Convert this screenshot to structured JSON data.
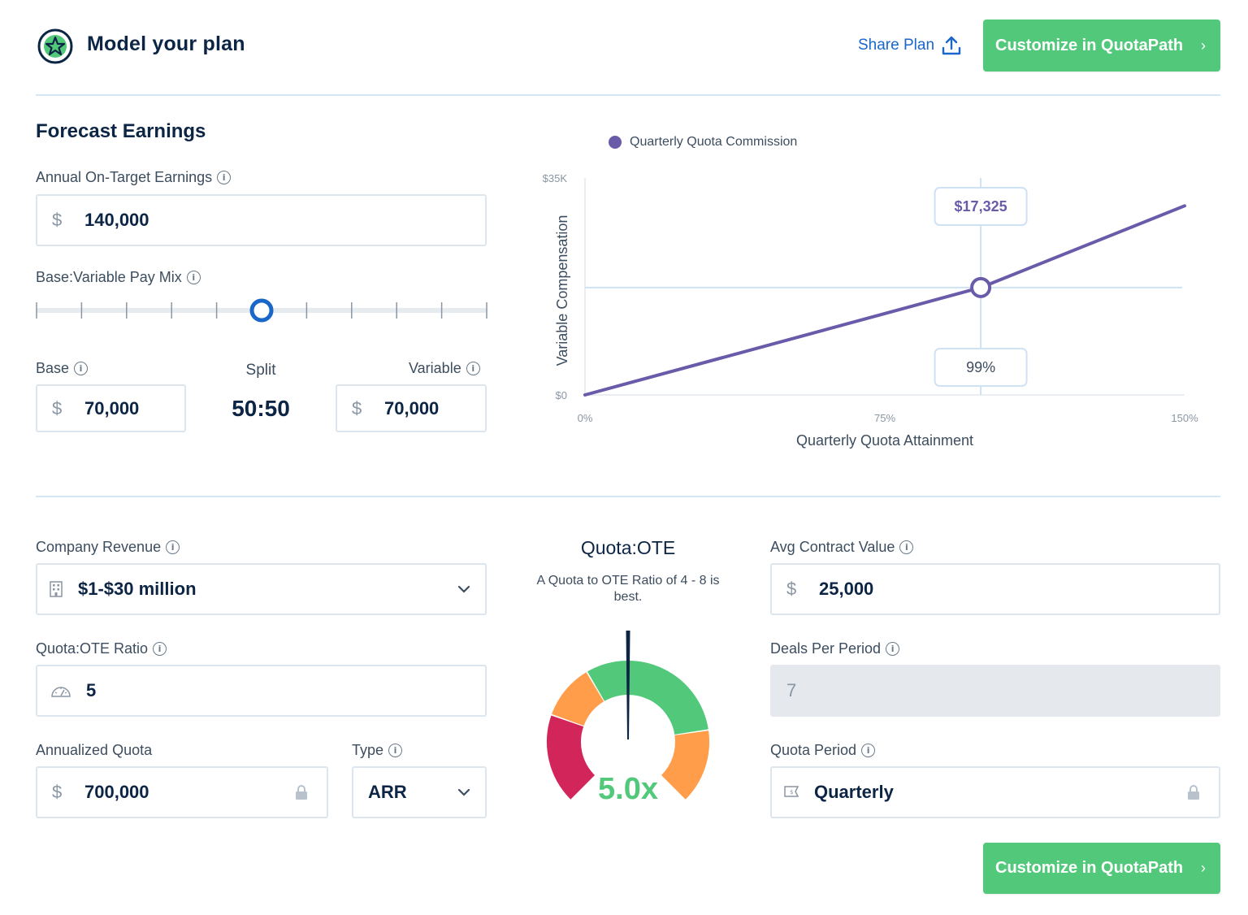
{
  "header": {
    "title": "Model your plan",
    "share_label": "Share Plan",
    "customize_label": "Customize in QuotaPath"
  },
  "forecast": {
    "title": "Forecast Earnings",
    "ote_label": "Annual On-Target Earnings",
    "ote_value": "140,000",
    "mix_label": "Base:Variable Pay Mix",
    "mix_slider_fraction": 0.5,
    "base_label": "Base",
    "base_value": "70,000",
    "split_label": "Split",
    "split_value": "50:50",
    "variable_label": "Variable",
    "variable_value": "70,000",
    "currency_symbol": "$"
  },
  "chart_data": {
    "type": "line",
    "legend": "Quarterly Quota Commission",
    "xlabel": "Quarterly Quota Attainment",
    "ylabel": "Variable Compensation",
    "x_ticks": [
      "0%",
      "75%",
      "150%"
    ],
    "y_ticks": [
      "$0",
      "$35K"
    ],
    "xlim": [
      0,
      150
    ],
    "ylim": [
      0,
      35000
    ],
    "series": [
      {
        "name": "Quarterly Quota Commission",
        "x": [
          0,
          99,
          150
        ],
        "y": [
          0,
          17325,
          30500
        ]
      }
    ],
    "marker": {
      "x": 99,
      "y": 17325,
      "x_label": "99%",
      "y_label": "$17,325"
    },
    "colors": {
      "line": "#6a5aaa",
      "grid": "#cfe2f3"
    }
  },
  "revenue": {
    "company_revenue_label": "Company Revenue",
    "company_revenue_value": "$1-$30 million",
    "ratio_label": "Quota:OTE Ratio",
    "ratio_value": "5",
    "annualized_label": "Annualized Quota",
    "annualized_value": "700,000",
    "type_label": "Type",
    "type_value": "ARR"
  },
  "gauge": {
    "title": "Quota:OTE",
    "subtitle": "A Quota to OTE Ratio of 4 - 8 is best.",
    "value_label": "5.0x",
    "colors": {
      "red": "#d2265a",
      "orange": "#ff9d4a",
      "green": "#52c97a",
      "needle": "#0d2545"
    }
  },
  "deals": {
    "acv_label": "Avg Contract Value",
    "acv_value": "25,000",
    "deals_label": "Deals Per Period",
    "deals_value": "7",
    "period_label": "Quota Period",
    "period_value": "Quarterly"
  },
  "colors": {
    "accent_green": "#52c97a",
    "link_blue": "#1a66c9",
    "navy": "#0d2545",
    "slider_blue": "#1a66c9"
  }
}
